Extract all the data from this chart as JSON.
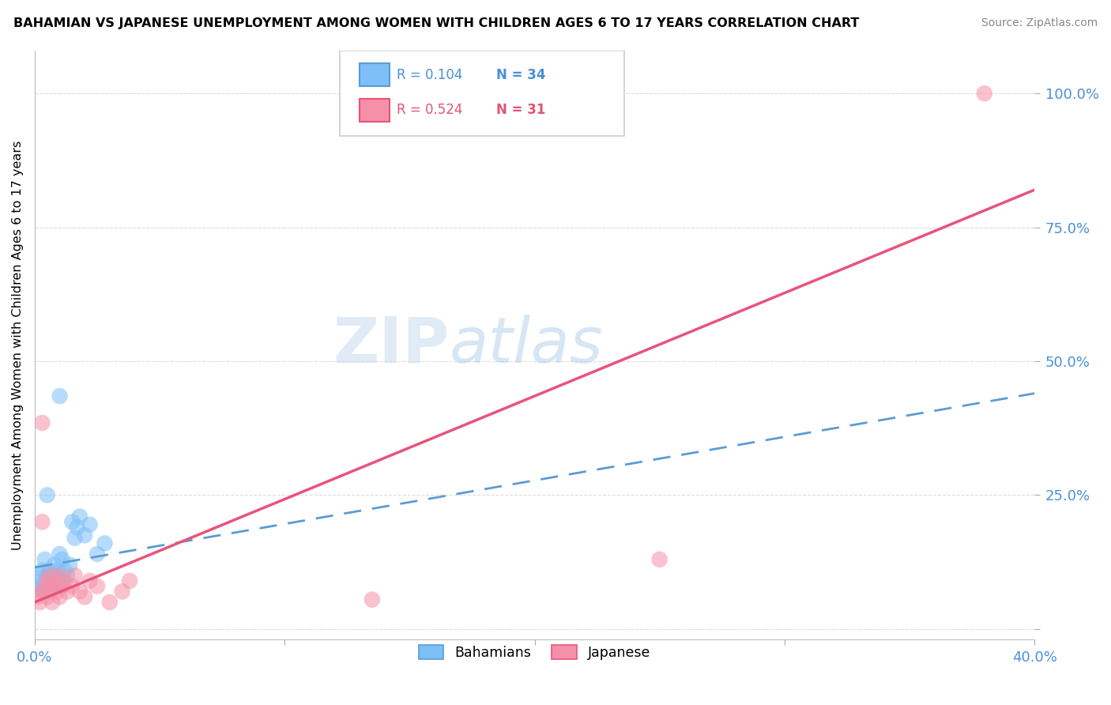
{
  "title": "BAHAMIAN VS JAPANESE UNEMPLOYMENT AMONG WOMEN WITH CHILDREN AGES 6 TO 17 YEARS CORRELATION CHART",
  "source": "Source: ZipAtlas.com",
  "ylabel": "Unemployment Among Women with Children Ages 6 to 17 years",
  "legend_blue_R": "R = 0.104",
  "legend_blue_N": "N = 34",
  "legend_pink_R": "R = 0.524",
  "legend_pink_N": "N = 31",
  "label_bahamians": "Bahamians",
  "label_japanese": "Japanese",
  "blue_color": "#7DC0F8",
  "pink_color": "#F690A8",
  "blue_line_color": "#5B9BD5",
  "pink_line_color": "#E8547A",
  "xlim": [
    0.0,
    0.4
  ],
  "ylim": [
    -0.02,
    1.08
  ],
  "grid_color": "#DDDDDD",
  "background_color": "#FFFFFF",
  "blue_line_x0": 0.0,
  "blue_line_y0": 0.115,
  "blue_line_x1": 0.4,
  "blue_line_y1": 0.44,
  "pink_line_x0": 0.0,
  "pink_line_y0": 0.05,
  "pink_line_x1": 0.4,
  "pink_line_y1": 0.82,
  "bah_x": [
    0.001,
    0.002,
    0.002,
    0.003,
    0.003,
    0.004,
    0.004,
    0.005,
    0.005,
    0.006,
    0.006,
    0.007,
    0.007,
    0.008,
    0.008,
    0.009,
    0.009,
    0.01,
    0.01,
    0.011,
    0.011,
    0.012,
    0.013,
    0.014,
    0.015,
    0.016,
    0.017,
    0.018,
    0.02,
    0.022,
    0.025,
    0.028,
    0.01,
    0.005
  ],
  "bah_y": [
    0.075,
    0.08,
    0.1,
    0.09,
    0.11,
    0.07,
    0.13,
    0.08,
    0.1,
    0.09,
    0.11,
    0.1,
    0.08,
    0.09,
    0.12,
    0.11,
    0.1,
    0.14,
    0.08,
    0.09,
    0.13,
    0.11,
    0.1,
    0.12,
    0.2,
    0.17,
    0.19,
    0.21,
    0.175,
    0.195,
    0.14,
    0.16,
    0.435,
    0.25
  ],
  "jap_x": [
    0.001,
    0.002,
    0.003,
    0.003,
    0.004,
    0.005,
    0.005,
    0.006,
    0.006,
    0.007,
    0.007,
    0.008,
    0.009,
    0.01,
    0.01,
    0.011,
    0.012,
    0.013,
    0.015,
    0.016,
    0.018,
    0.02,
    0.022,
    0.025,
    0.03,
    0.035,
    0.038,
    0.38,
    0.003,
    0.25,
    0.135
  ],
  "jap_y": [
    0.06,
    0.05,
    0.07,
    0.385,
    0.08,
    0.06,
    0.09,
    0.07,
    0.1,
    0.08,
    0.05,
    0.09,
    0.07,
    0.06,
    0.1,
    0.08,
    0.09,
    0.07,
    0.08,
    0.1,
    0.07,
    0.06,
    0.09,
    0.08,
    0.05,
    0.07,
    0.09,
    1.0,
    0.2,
    0.13,
    0.055
  ]
}
